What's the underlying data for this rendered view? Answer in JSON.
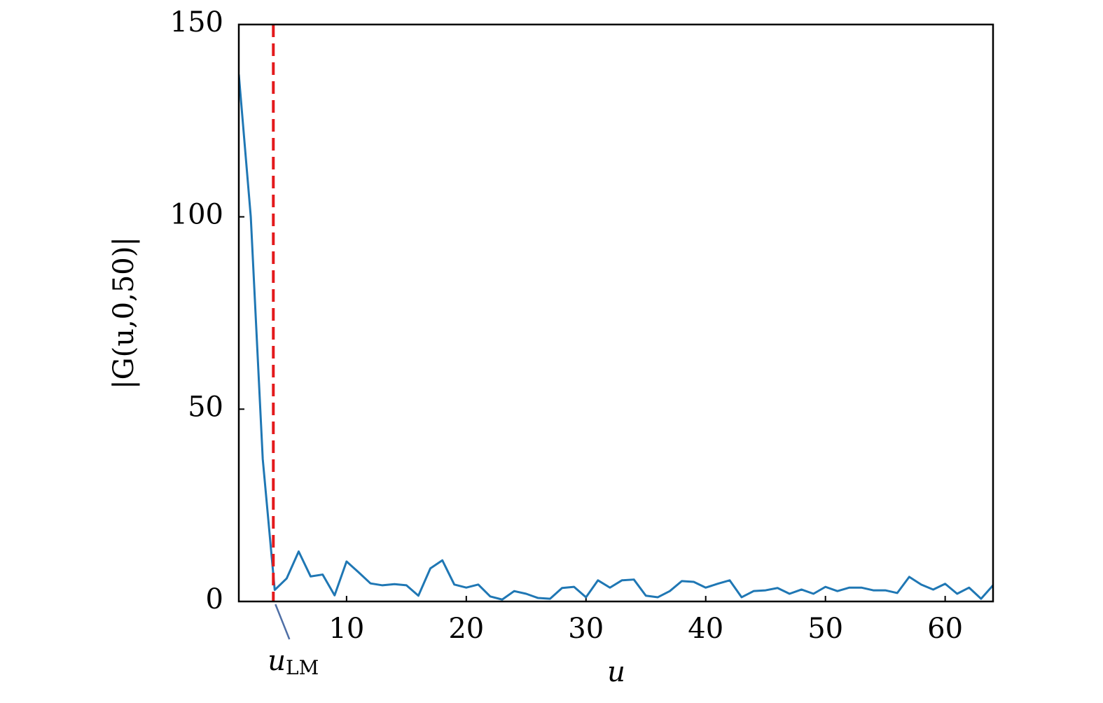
{
  "chart_data": {
    "type": "line",
    "xlabel": "u",
    "ylabel": "|G(u,0,50)|",
    "x": [
      1,
      2,
      3,
      4,
      5,
      6,
      7,
      8,
      9,
      10,
      11,
      12,
      13,
      14,
      15,
      16,
      17,
      18,
      19,
      20,
      21,
      22,
      23,
      24,
      25,
      26,
      27,
      28,
      29,
      30,
      31,
      32,
      33,
      34,
      35,
      36,
      37,
      38,
      39,
      40,
      41,
      42,
      43,
      44,
      45,
      46,
      47,
      48,
      49,
      50,
      51,
      52,
      53,
      54,
      55,
      56,
      57,
      58,
      59,
      60,
      61,
      62,
      63,
      64
    ],
    "series": [
      {
        "color": "#1f77b4",
        "values": [
          137,
          100,
          37,
          3,
          6,
          13,
          6.5,
          7,
          1.6,
          10.4,
          7.6,
          4.7,
          4.2,
          4.5,
          4.2,
          1.5,
          8.6,
          10.7,
          4.4,
          3.6,
          4.4,
          1.3,
          0.5,
          2.7,
          2,
          0.9,
          0.7,
          3.5,
          3.8,
          1.1,
          5.5,
          3.6,
          5.5,
          5.7,
          1.5,
          1.1,
          2.7,
          5.3,
          5.1,
          3.6,
          4.6,
          5.5,
          1.1,
          2.7,
          2.9,
          3.5,
          2,
          3.1,
          2,
          3.8,
          2.7,
          3.6,
          3.6,
          2.9,
          2.9,
          2.2,
          6.4,
          4.4,
          3.1,
          4.6,
          2,
          3.6,
          0.7,
          4.2
        ]
      }
    ],
    "xlim": [
      1,
      64
    ],
    "ylim": [
      0,
      150
    ],
    "xticks": [
      10,
      20,
      30,
      40,
      50,
      60
    ],
    "yticks": [
      0,
      50,
      100,
      150
    ],
    "annotation": {
      "x": 4,
      "color": "#e31a1c",
      "text": "u",
      "subscript": "LM"
    }
  }
}
